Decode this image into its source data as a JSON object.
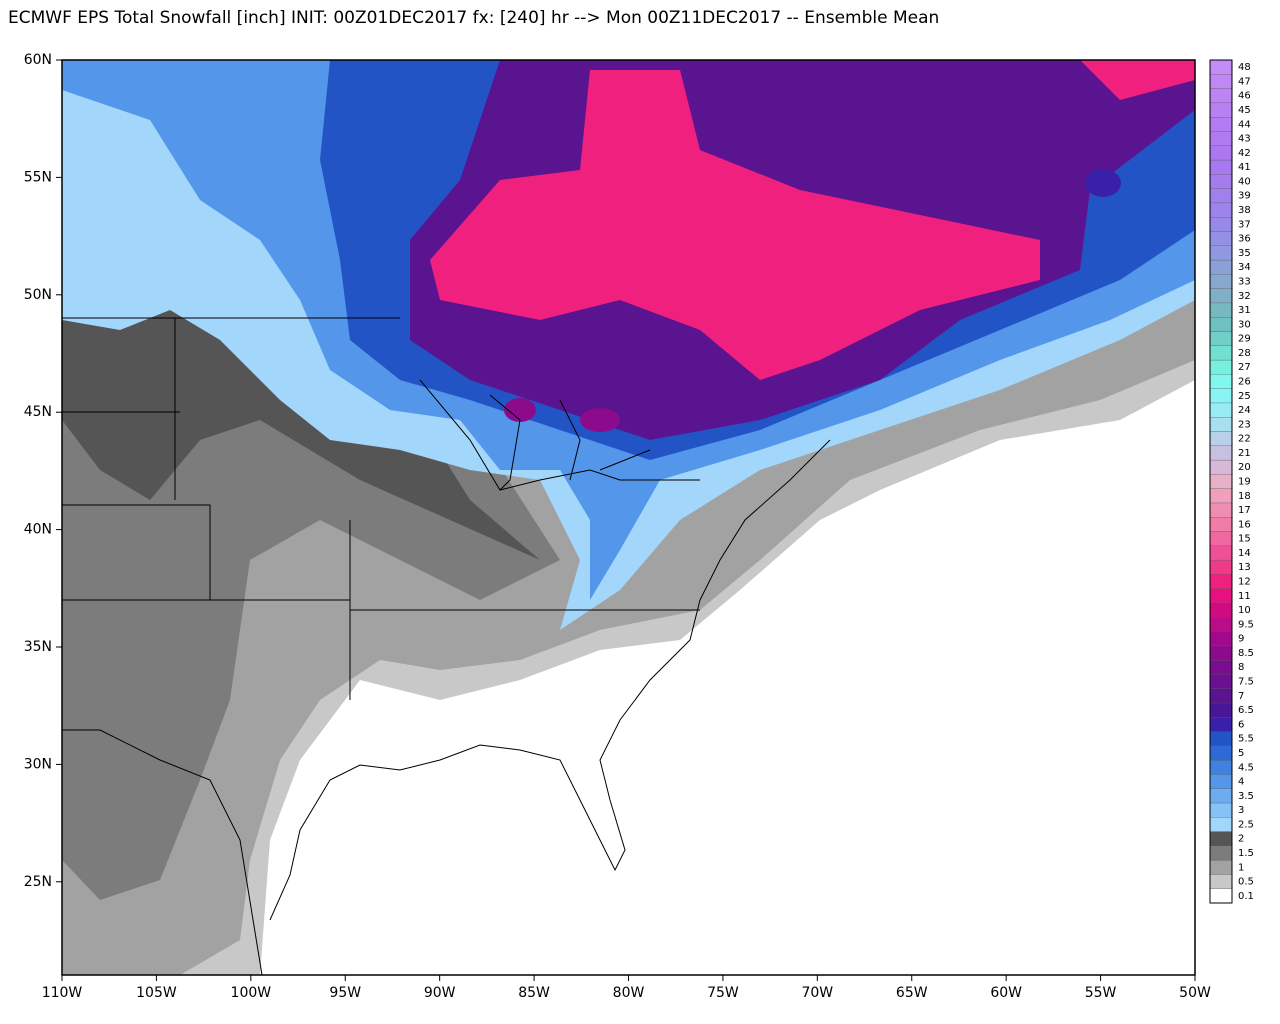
{
  "title": "ECMWF EPS Total Snowfall [inch] INIT: 00Z01DEC2017 fx: [240] hr --> Mon 00Z11DEC2017 -- Ensemble Mean",
  "map": {
    "lat_labels": [
      "60N",
      "55N",
      "50N",
      "45N",
      "40N",
      "35N",
      "30N",
      "25N"
    ],
    "lon_labels": [
      "110W",
      "105W",
      "100W",
      "95W",
      "90W",
      "85W",
      "80W",
      "75W",
      "70W",
      "65W",
      "60W",
      "55W",
      "50W"
    ]
  },
  "colorbar": [
    {
      "label": "0.1",
      "color": "#ffffff"
    },
    {
      "label": "0.5",
      "color": "#c8c8c8"
    },
    {
      "label": "1",
      "color": "#a2a2a2"
    },
    {
      "label": "1.5",
      "color": "#7c7c7c"
    },
    {
      "label": "2",
      "color": "#555555"
    },
    {
      "label": "2.5",
      "color": "#a2d6fa"
    },
    {
      "label": "3",
      "color": "#86c2f6"
    },
    {
      "label": "3.5",
      "color": "#6cacf0"
    },
    {
      "label": "4",
      "color": "#5496ea"
    },
    {
      "label": "4.5",
      "color": "#3f80e2"
    },
    {
      "label": "5",
      "color": "#2e6ad6"
    },
    {
      "label": "5.5",
      "color": "#2354c6"
    },
    {
      "label": "6",
      "color": "#3a1fa8"
    },
    {
      "label": "6.5",
      "color": "#4a1698"
    },
    {
      "label": "7",
      "color": "#5a1490"
    },
    {
      "label": "7.5",
      "color": "#6a1090"
    },
    {
      "label": "8",
      "color": "#7a0c8e"
    },
    {
      "label": "8.5",
      "color": "#8c0a8c"
    },
    {
      "label": "9",
      "color": "#a00a8a"
    },
    {
      "label": "9.5",
      "color": "#b80c88"
    },
    {
      "label": "10",
      "color": "#d00a80"
    },
    {
      "label": "11",
      "color": "#e81080"
    },
    {
      "label": "12",
      "color": "#f0207f"
    },
    {
      "label": "13",
      "color": "#f03a88"
    },
    {
      "label": "14",
      "color": "#f05095"
    },
    {
      "label": "15",
      "color": "#f068a0"
    },
    {
      "label": "16",
      "color": "#f07ca8"
    },
    {
      "label": "17",
      "color": "#f08eb2"
    },
    {
      "label": "18",
      "color": "#f0a0bc"
    },
    {
      "label": "19",
      "color": "#e8b0c8"
    },
    {
      "label": "20",
      "color": "#d8b8d8"
    },
    {
      "label": "21",
      "color": "#c8c0e0"
    },
    {
      "label": "22",
      "color": "#b8d0e8"
    },
    {
      "label": "23",
      "color": "#a8e0f0"
    },
    {
      "label": "24",
      "color": "#98ecf4"
    },
    {
      "label": "25",
      "color": "#88f4f4"
    },
    {
      "label": "26",
      "color": "#80f8f0"
    },
    {
      "label": "27",
      "color": "#78f0e0"
    },
    {
      "label": "28",
      "color": "#70e0d0"
    },
    {
      "label": "29",
      "color": "#70d0c8"
    },
    {
      "label": "30",
      "color": "#70c0c0"
    },
    {
      "label": "31",
      "color": "#78b8c0"
    },
    {
      "label": "32",
      "color": "#80b0c8"
    },
    {
      "label": "33",
      "color": "#88a8d0"
    },
    {
      "label": "34",
      "color": "#8ca0d8"
    },
    {
      "label": "35",
      "color": "#9098e0"
    },
    {
      "label": "36",
      "color": "#9490e4"
    },
    {
      "label": "37",
      "color": "#9888e8"
    },
    {
      "label": "38",
      "color": "#9c84ea"
    },
    {
      "label": "39",
      "color": "#a080ec"
    },
    {
      "label": "40",
      "color": "#a47cee"
    },
    {
      "label": "41",
      "color": "#a878f0"
    },
    {
      "label": "42",
      "color": "#ac78f0"
    },
    {
      "label": "43",
      "color": "#b07af0"
    },
    {
      "label": "44",
      "color": "#b47cf2"
    },
    {
      "label": "45",
      "color": "#b880f2"
    },
    {
      "label": "46",
      "color": "#bc84f4"
    },
    {
      "label": "47",
      "color": "#c088f4"
    },
    {
      "label": "48",
      "color": "#c48cf6"
    }
  ]
}
